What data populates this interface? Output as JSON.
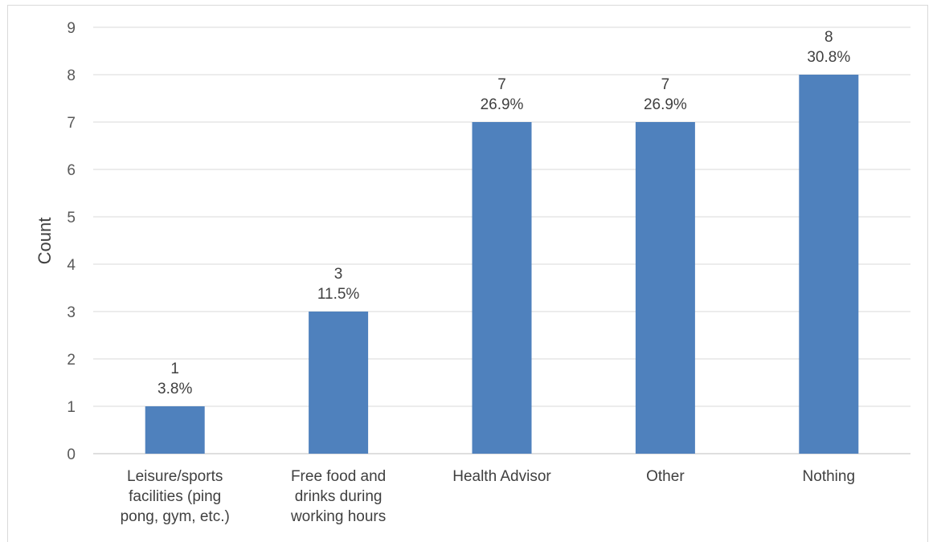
{
  "chart_data": {
    "type": "bar",
    "title": "",
    "xlabel": "",
    "ylabel": "Count",
    "ylim": [
      0,
      9
    ],
    "yticks": [
      0,
      1,
      2,
      3,
      4,
      5,
      6,
      7,
      8,
      9
    ],
    "grid": true,
    "legend": "none",
    "bar_color": "#4f81bd",
    "categories": [
      [
        "Leisure/sports",
        "facilities (ping",
        "pong, gym, etc.)"
      ],
      [
        "Free food and",
        "drinks during",
        "working hours"
      ],
      [
        "Health Advisor"
      ],
      [
        "Other"
      ],
      [
        "Nothing"
      ]
    ],
    "values": [
      1,
      3,
      7,
      7,
      8
    ],
    "percent_labels": [
      "3.8%",
      "11.5%",
      "26.9%",
      "26.9%",
      "30.8%"
    ]
  }
}
